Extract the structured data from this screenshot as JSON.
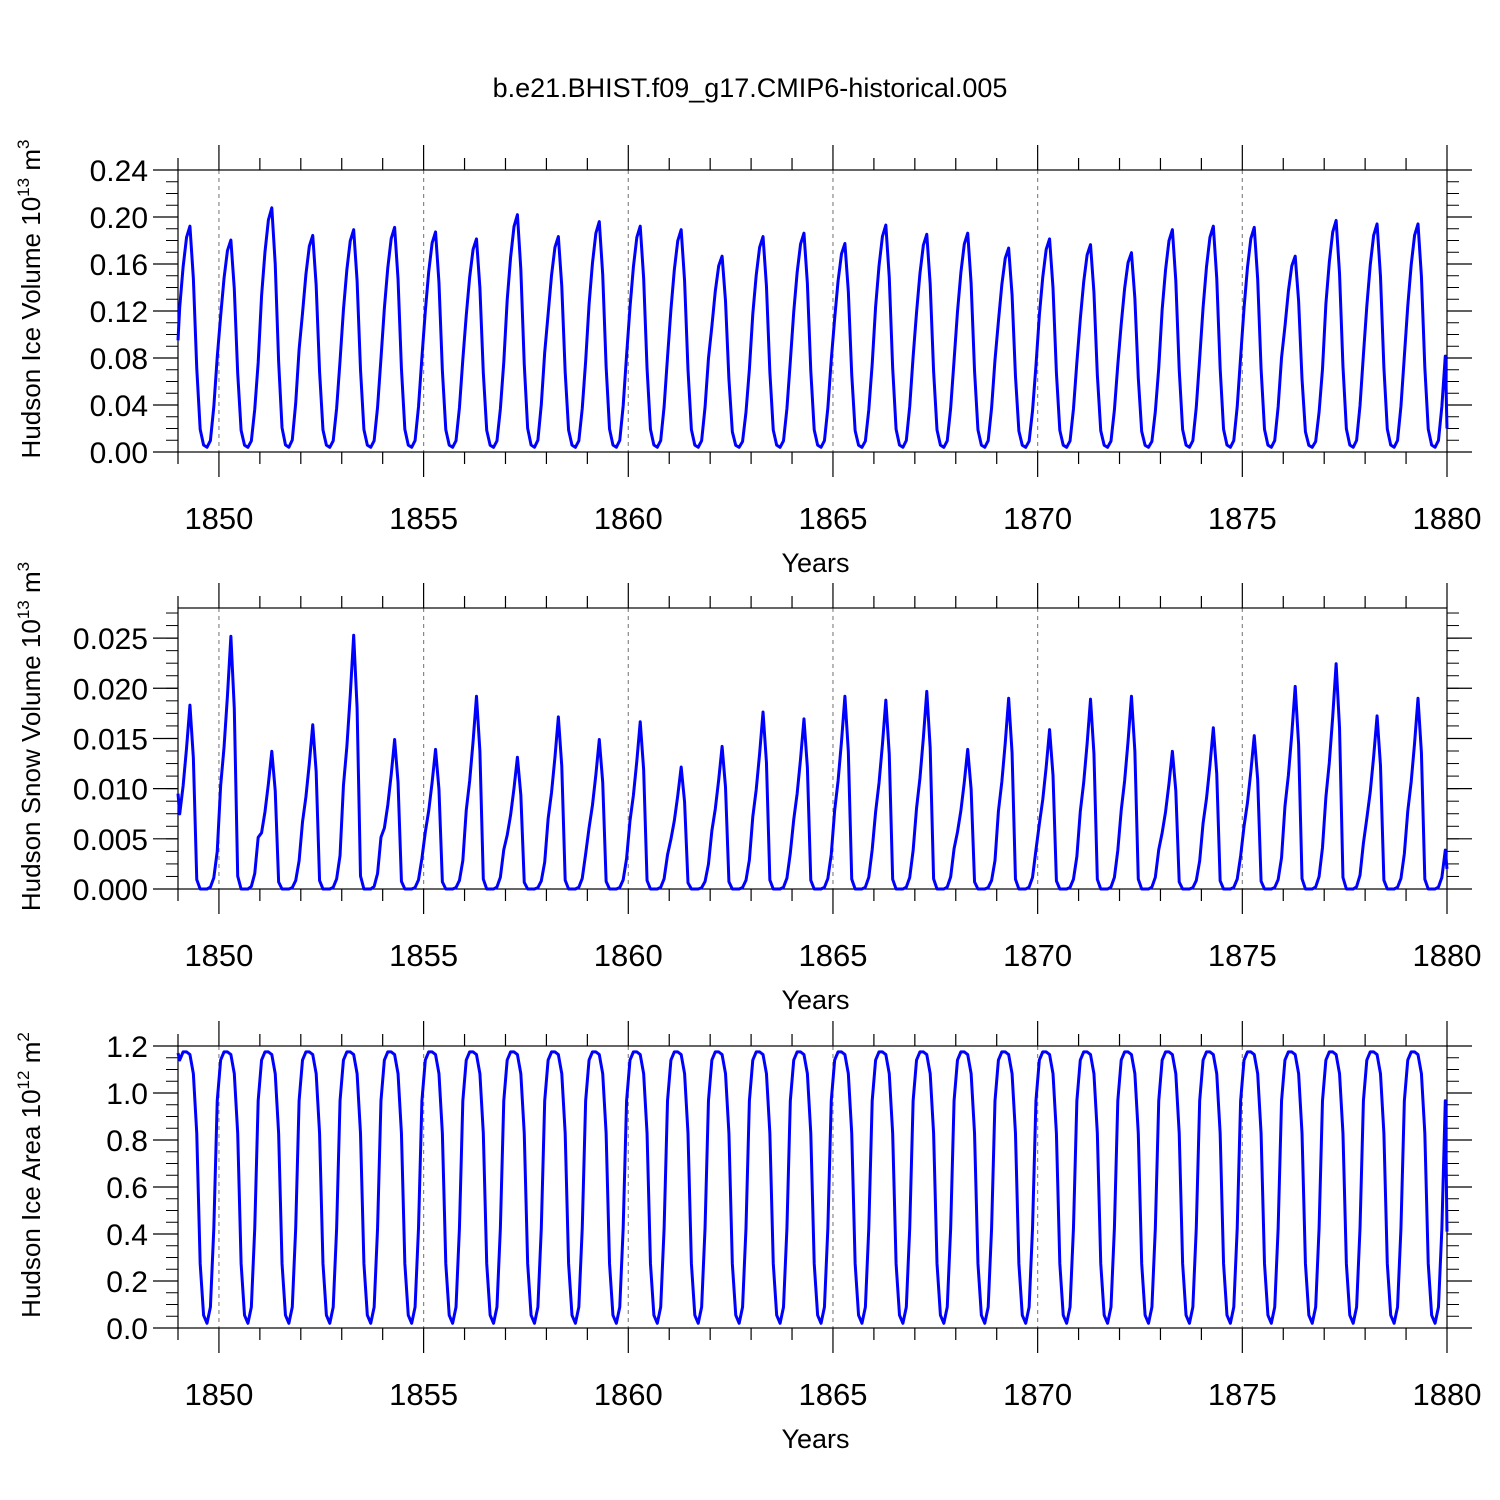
{
  "title": "b.e21.BHIST.f09_g17.CMIP6-historical.005",
  "chart_data": [
    {
      "type": "line",
      "xlabel": "Years",
      "ylabel_base": "Hudson Ice Volume 10",
      "ylabel_exp": "13",
      "ylabel_unit": " m",
      "ylabel_unit_exp": "3",
      "xlim": [
        1849,
        1880
      ],
      "ylim": [
        0,
        0.24
      ],
      "xticks": [
        1850,
        1855,
        1860,
        1865,
        1870,
        1875,
        1880
      ],
      "xtick_labels": [
        "1850",
        "1855",
        "1860",
        "1865",
        "1870",
        "1875",
        "1880"
      ],
      "yticks": [
        0,
        0.04,
        0.08,
        0.12,
        0.16,
        0.2,
        0.24
      ],
      "ytick_labels": [
        "0.00",
        "0.04",
        "0.08",
        "0.12",
        "0.16",
        "0.20",
        "0.24"
      ],
      "ref_lines_x": [
        1850,
        1855,
        1860,
        1865,
        1870,
        1875
      ],
      "color": "#0000ff",
      "peaks": [
        0.196,
        0.184,
        0.212,
        0.188,
        0.193,
        0.195,
        0.191,
        0.185,
        0.206,
        0.187,
        0.2,
        0.196,
        0.193,
        0.17,
        0.187,
        0.19,
        0.181,
        0.197,
        0.189,
        0.19,
        0.177,
        0.185,
        0.18,
        0.173,
        0.193,
        0.196,
        0.195,
        0.17,
        0.201,
        0.198,
        0.198
      ],
      "minimum": 0.004,
      "start_value": 0.095,
      "end_value": 0.02,
      "pattern": "ice_volume"
    },
    {
      "type": "line",
      "xlabel": "Years",
      "ylabel_base": "Hudson Snow Volume 10",
      "ylabel_exp": "13",
      "ylabel_unit": " m",
      "ylabel_unit_exp": "3",
      "xlim": [
        1849,
        1880
      ],
      "ylim": [
        0,
        0.028
      ],
      "xticks": [
        1850,
        1855,
        1860,
        1865,
        1870,
        1875,
        1880
      ],
      "xtick_labels": [
        "1850",
        "1855",
        "1860",
        "1865",
        "1870",
        "1875",
        "1880"
      ],
      "yticks": [
        0,
        0.005,
        0.01,
        0.015,
        0.02,
        0.025
      ],
      "ytick_labels": [
        "0.000",
        "0.005",
        "0.010",
        "0.015",
        "0.020",
        "0.025"
      ],
      "ref_lines_x": [
        1850,
        1855,
        1860,
        1865,
        1870,
        1875
      ],
      "color": "#0000ff",
      "peaks": [
        0.0187,
        0.0257,
        0.014,
        0.0167,
        0.0258,
        0.0152,
        0.0142,
        0.0196,
        0.0134,
        0.0175,
        0.0152,
        0.017,
        0.0124,
        0.0145,
        0.018,
        0.0173,
        0.0196,
        0.0192,
        0.0201,
        0.0142,
        0.0194,
        0.0162,
        0.0193,
        0.0196,
        0.014,
        0.0164,
        0.0156,
        0.0206,
        0.0229,
        0.0176,
        0.0194
      ],
      "minimum": 0.0,
      "start_value": 0.0095,
      "end_value": 0.002,
      "pattern": "snow_volume"
    },
    {
      "type": "line",
      "xlabel": "Years",
      "ylabel_base": "Hudson Ice Area 10",
      "ylabel_exp": "12",
      "ylabel_unit": " m",
      "ylabel_unit_exp": "2",
      "xlim": [
        1849,
        1880
      ],
      "ylim": [
        0,
        1.2
      ],
      "xticks": [
        1850,
        1855,
        1860,
        1865,
        1870,
        1875,
        1880
      ],
      "xtick_labels": [
        "1850",
        "1855",
        "1860",
        "1865",
        "1870",
        "1875",
        "1880"
      ],
      "yticks": [
        0,
        0.2,
        0.4,
        0.6,
        0.8,
        1.0,
        1.2
      ],
      "ytick_labels": [
        "0.0",
        "0.2",
        "0.4",
        "0.6",
        "0.8",
        "1.0",
        "1.2"
      ],
      "ref_lines_x": [
        1850,
        1855,
        1860,
        1865,
        1870,
        1875
      ],
      "color": "#0000ff",
      "peaks": [
        1.175,
        1.175,
        1.175,
        1.175,
        1.175,
        1.175,
        1.175,
        1.175,
        1.175,
        1.175,
        1.175,
        1.175,
        1.175,
        1.175,
        1.175,
        1.175,
        1.175,
        1.175,
        1.175,
        1.175,
        1.175,
        1.175,
        1.175,
        1.175,
        1.175,
        1.175,
        1.175,
        1.175,
        1.175,
        1.175,
        1.175
      ],
      "minimum": 0.02,
      "start_value": 1.17,
      "end_value": 0.41,
      "pattern": "ice_area"
    }
  ]
}
